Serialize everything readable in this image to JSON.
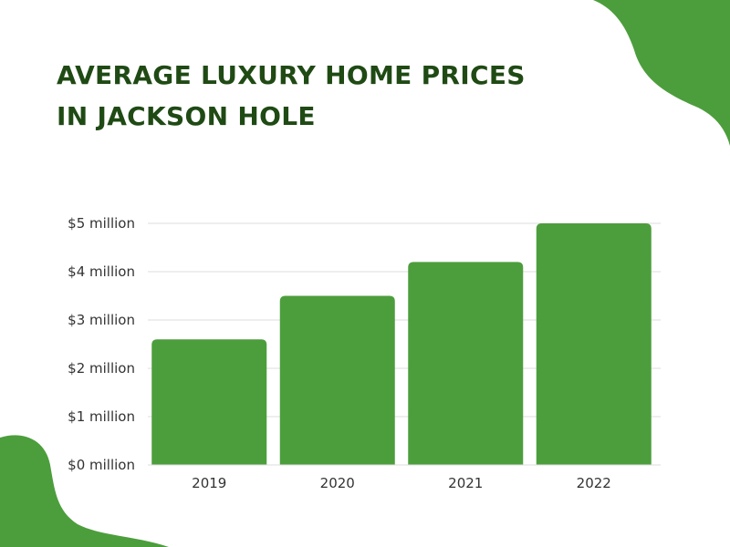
{
  "colors": {
    "accent": "#4c9e3c",
    "title": "#1f4a14",
    "grid": "#dddddd",
    "axis_text": "#333333"
  },
  "chart_data": {
    "type": "bar",
    "title_lines": [
      "AVERAGE LUXURY HOME PRICES",
      "IN JACKSON HOLE"
    ],
    "categories": [
      "2019",
      "2020",
      "2021",
      "2022"
    ],
    "values": [
      2.6,
      3.5,
      4.2,
      5.0
    ],
    "unit": "million USD",
    "ylim": [
      0,
      5
    ],
    "yticks": [
      0,
      1,
      2,
      3,
      4,
      5
    ],
    "ytick_labels": [
      "$0 million",
      "$1 million",
      "$2 million",
      "$3 million",
      "$4 million",
      "$5 million"
    ],
    "xlabel": "",
    "ylabel": "",
    "grid": true,
    "legend": "none"
  }
}
